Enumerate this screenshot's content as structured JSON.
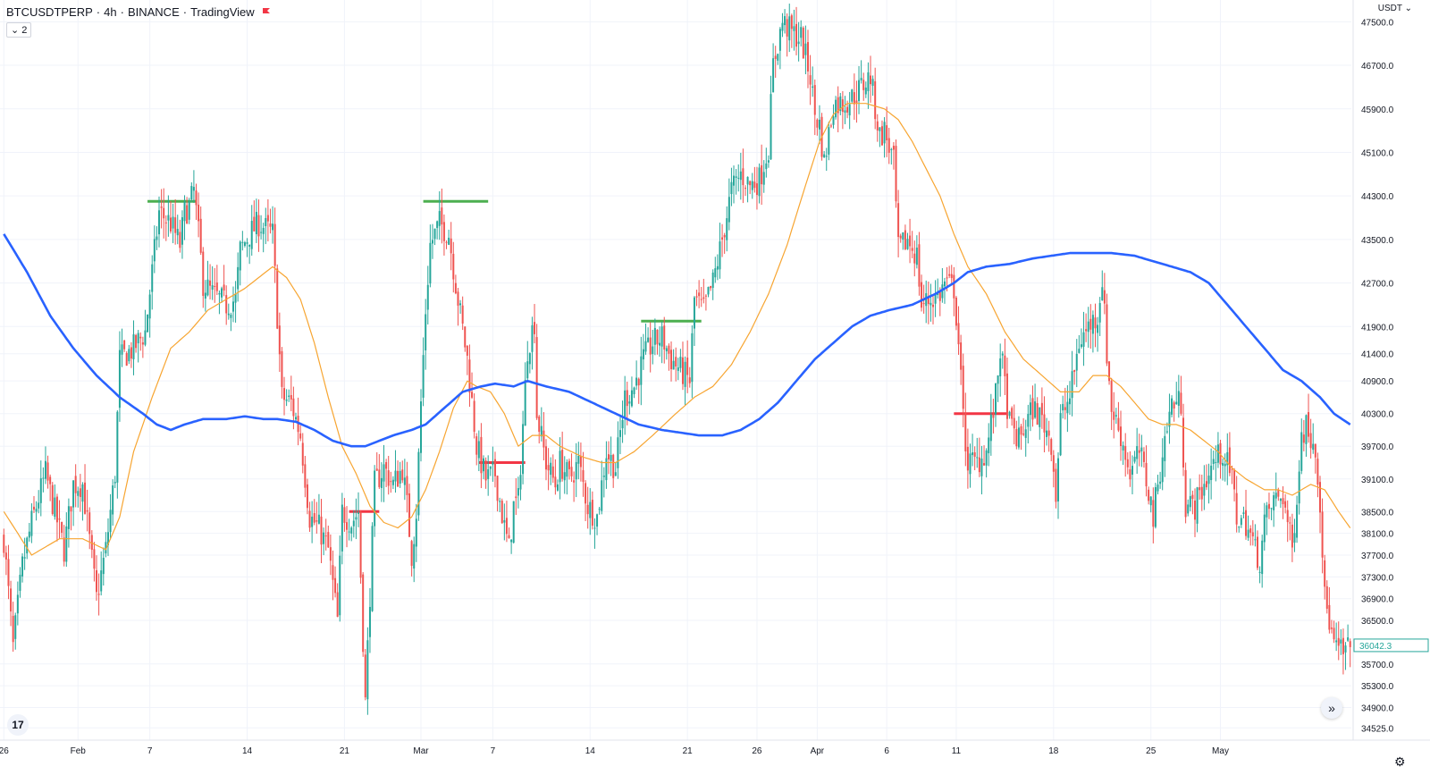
{
  "header": {
    "symbol": "BTCUSDTPERP",
    "interval": "4h",
    "exchange": "BINANCE",
    "source": "TradingView",
    "indicator_count": "2",
    "currency": "USDT"
  },
  "colors": {
    "up": "#26a69a",
    "down": "#ef5350",
    "ma_fast": "#f7a531",
    "ma_slow": "#2962ff",
    "resistance": "#4caf50",
    "support": "#f23645",
    "price_tag": "#26a69a"
  },
  "chart_data": {
    "type": "candlestick",
    "ylim": [
      34300,
      47900
    ],
    "y_ticks": [
      "47500.0",
      "46700.0",
      "45900.0",
      "45100.0",
      "44300.0",
      "43500.0",
      "42700.0",
      "41900.0",
      "41400.0",
      "40900.0",
      "40300.0",
      "39700.0",
      "39100.0",
      "38500.0",
      "38100.0",
      "37700.0",
      "37300.0",
      "36900.0",
      "36500.0",
      "36042.3",
      "35700.0",
      "35300.0",
      "34900.0",
      "34525.0"
    ],
    "x_labels": [
      {
        "label": "26",
        "idx": 0
      },
      {
        "label": "Feb",
        "idx": 32
      },
      {
        "label": "7",
        "idx": 63
      },
      {
        "label": "14",
        "idx": 105
      },
      {
        "label": "21",
        "idx": 147
      },
      {
        "label": "Mar",
        "idx": 180
      },
      {
        "label": "7",
        "idx": 211
      },
      {
        "label": "14",
        "idx": 253
      },
      {
        "label": "21",
        "idx": 295
      },
      {
        "label": "26",
        "idx": 325
      },
      {
        "label": "Apr",
        "idx": 351
      },
      {
        "label": "6",
        "idx": 381
      },
      {
        "label": "11",
        "idx": 411
      },
      {
        "label": "18",
        "idx": 453
      },
      {
        "label": "25",
        "idx": 495
      },
      {
        "label": "May",
        "idx": 525
      }
    ],
    "last_price": "36042.3",
    "close_anchors": [
      [
        0,
        38000
      ],
      [
        4,
        36000
      ],
      [
        8,
        37500
      ],
      [
        12,
        38300
      ],
      [
        18,
        39200
      ],
      [
        22,
        38500
      ],
      [
        26,
        37800
      ],
      [
        30,
        39000
      ],
      [
        34,
        39000
      ],
      [
        40,
        36900
      ],
      [
        44,
        37800
      ],
      [
        48,
        39200
      ],
      [
        50,
        41300
      ],
      [
        56,
        41500
      ],
      [
        61,
        41800
      ],
      [
        64,
        42900
      ],
      [
        67,
        44000
      ],
      [
        72,
        43800
      ],
      [
        76,
        43400
      ],
      [
        78,
        44000
      ],
      [
        80,
        44100
      ],
      [
        82,
        44400
      ],
      [
        84,
        43600
      ],
      [
        86,
        42700
      ],
      [
        90,
        42500
      ],
      [
        96,
        42300
      ],
      [
        100,
        42400
      ],
      [
        102,
        43300
      ],
      [
        106,
        43600
      ],
      [
        110,
        43800
      ],
      [
        116,
        43600
      ],
      [
        120,
        40600
      ],
      [
        124,
        40500
      ],
      [
        128,
        39900
      ],
      [
        132,
        38400
      ],
      [
        136,
        38200
      ],
      [
        140,
        37800
      ],
      [
        144,
        36500
      ],
      [
        146,
        38500
      ],
      [
        150,
        38300
      ],
      [
        153,
        38500
      ],
      [
        156,
        35000
      ],
      [
        160,
        39000
      ],
      [
        164,
        39300
      ],
      [
        168,
        39000
      ],
      [
        172,
        39300
      ],
      [
        174,
        38600
      ],
      [
        176,
        37700
      ],
      [
        178,
        38500
      ],
      [
        180,
        40500
      ],
      [
        182,
        42200
      ],
      [
        184,
        43400
      ],
      [
        188,
        43800
      ],
      [
        192,
        43600
      ],
      [
        196,
        42400
      ],
      [
        200,
        41300
      ],
      [
        204,
        39700
      ],
      [
        208,
        39100
      ],
      [
        212,
        39200
      ],
      [
        216,
        38200
      ],
      [
        218,
        37800
      ],
      [
        220,
        38600
      ],
      [
        222,
        38700
      ],
      [
        226,
        41500
      ],
      [
        229,
        42000
      ],
      [
        230,
        40300
      ],
      [
        234,
        39400
      ],
      [
        238,
        39000
      ],
      [
        240,
        39400
      ],
      [
        244,
        39100
      ],
      [
        248,
        39400
      ],
      [
        252,
        38600
      ],
      [
        256,
        38400
      ],
      [
        260,
        39600
      ],
      [
        264,
        39300
      ],
      [
        268,
        40600
      ],
      [
        272,
        40800
      ],
      [
        276,
        41300
      ],
      [
        280,
        41600
      ],
      [
        284,
        41700
      ],
      [
        288,
        41300
      ],
      [
        292,
        41100
      ],
      [
        296,
        40900
      ],
      [
        298,
        42400
      ],
      [
        302,
        42200
      ],
      [
        306,
        42700
      ],
      [
        310,
        43500
      ],
      [
        314,
        44400
      ],
      [
        318,
        44700
      ],
      [
        322,
        44500
      ],
      [
        326,
        44600
      ],
      [
        330,
        45200
      ],
      [
        332,
        46700
      ],
      [
        336,
        47500
      ],
      [
        340,
        47300
      ],
      [
        344,
        47200
      ],
      [
        348,
        46500
      ],
      [
        350,
        45800
      ],
      [
        352,
        45600
      ],
      [
        354,
        44900
      ],
      [
        358,
        46000
      ],
      [
        362,
        46000
      ],
      [
        366,
        46100
      ],
      [
        370,
        46300
      ],
      [
        374,
        46500
      ],
      [
        376,
        45900
      ],
      [
        378,
        45400
      ],
      [
        380,
        45500
      ],
      [
        384,
        44900
      ],
      [
        386,
        43300
      ],
      [
        390,
        43500
      ],
      [
        394,
        43200
      ],
      [
        396,
        42300
      ],
      [
        400,
        42400
      ],
      [
        404,
        42500
      ],
      [
        406,
        42700
      ],
      [
        410,
        42600
      ],
      [
        412,
        41600
      ],
      [
        414,
        40200
      ],
      [
        416,
        39400
      ],
      [
        420,
        39400
      ],
      [
        424,
        39600
      ],
      [
        428,
        40600
      ],
      [
        430,
        41500
      ],
      [
        434,
        40100
      ],
      [
        438,
        39800
      ],
      [
        440,
        40000
      ],
      [
        444,
        40400
      ],
      [
        448,
        40200
      ],
      [
        452,
        39800
      ],
      [
        454,
        38800
      ],
      [
        456,
        40200
      ],
      [
        460,
        40600
      ],
      [
        464,
        41600
      ],
      [
        468,
        41900
      ],
      [
        472,
        42100
      ],
      [
        474,
        42800
      ],
      [
        476,
        41400
      ],
      [
        478,
        40400
      ],
      [
        482,
        39900
      ],
      [
        486,
        39200
      ],
      [
        490,
        39600
      ],
      [
        494,
        38900
      ],
      [
        496,
        38400
      ],
      [
        500,
        39600
      ],
      [
        504,
        40500
      ],
      [
        508,
        40500
      ],
      [
        510,
        38600
      ],
      [
        514,
        38600
      ],
      [
        518,
        39000
      ],
      [
        522,
        39400
      ],
      [
        526,
        39600
      ],
      [
        530,
        39100
      ],
      [
        532,
        38400
      ],
      [
        536,
        38300
      ],
      [
        540,
        37800
      ],
      [
        542,
        37600
      ],
      [
        544,
        38300
      ],
      [
        548,
        38700
      ],
      [
        552,
        38800
      ],
      [
        556,
        37800
      ],
      [
        560,
        39900
      ],
      [
        562,
        40100
      ],
      [
        566,
        39700
      ],
      [
        568,
        38700
      ],
      [
        570,
        36900
      ],
      [
        572,
        36500
      ],
      [
        574,
        36000
      ],
      [
        578,
        35900
      ],
      [
        581,
        36000
      ]
    ],
    "ma_fast_anchors": [
      [
        0,
        38500
      ],
      [
        12,
        37700
      ],
      [
        24,
        38000
      ],
      [
        34,
        38000
      ],
      [
        44,
        37800
      ],
      [
        50,
        38400
      ],
      [
        56,
        39600
      ],
      [
        64,
        40600
      ],
      [
        72,
        41500
      ],
      [
        80,
        41800
      ],
      [
        88,
        42200
      ],
      [
        96,
        42400
      ],
      [
        104,
        42600
      ],
      [
        110,
        42800
      ],
      [
        116,
        43000
      ],
      [
        122,
        42800
      ],
      [
        128,
        42400
      ],
      [
        134,
        41600
      ],
      [
        140,
        40600
      ],
      [
        146,
        39700
      ],
      [
        152,
        39200
      ],
      [
        158,
        38600
      ],
      [
        164,
        38300
      ],
      [
        170,
        38200
      ],
      [
        176,
        38400
      ],
      [
        182,
        38900
      ],
      [
        188,
        39600
      ],
      [
        194,
        40400
      ],
      [
        200,
        40900
      ],
      [
        204,
        40800
      ],
      [
        210,
        40700
      ],
      [
        216,
        40300
      ],
      [
        222,
        39700
      ],
      [
        228,
        39900
      ],
      [
        234,
        39900
      ],
      [
        240,
        39700
      ],
      [
        250,
        39500
      ],
      [
        258,
        39400
      ],
      [
        264,
        39400
      ],
      [
        272,
        39600
      ],
      [
        280,
        39900
      ],
      [
        290,
        40300
      ],
      [
        298,
        40600
      ],
      [
        306,
        40800
      ],
      [
        314,
        41200
      ],
      [
        322,
        41800
      ],
      [
        330,
        42500
      ],
      [
        338,
        43400
      ],
      [
        346,
        44500
      ],
      [
        352,
        45300
      ],
      [
        358,
        45800
      ],
      [
        364,
        46000
      ],
      [
        372,
        46000
      ],
      [
        380,
        45900
      ],
      [
        386,
        45700
      ],
      [
        392,
        45300
      ],
      [
        398,
        44800
      ],
      [
        404,
        44300
      ],
      [
        410,
        43600
      ],
      [
        416,
        43000
      ],
      [
        424,
        42500
      ],
      [
        432,
        41800
      ],
      [
        440,
        41300
      ],
      [
        448,
        41000
      ],
      [
        456,
        40700
      ],
      [
        464,
        40700
      ],
      [
        470,
        41000
      ],
      [
        476,
        41000
      ],
      [
        482,
        40800
      ],
      [
        488,
        40500
      ],
      [
        494,
        40200
      ],
      [
        500,
        40100
      ],
      [
        506,
        40100
      ],
      [
        512,
        40000
      ],
      [
        518,
        39800
      ],
      [
        524,
        39600
      ],
      [
        530,
        39300
      ],
      [
        536,
        39100
      ],
      [
        544,
        38900
      ],
      [
        550,
        38900
      ],
      [
        556,
        38800
      ],
      [
        560,
        38900
      ],
      [
        564,
        39000
      ],
      [
        570,
        38900
      ],
      [
        576,
        38500
      ],
      [
        581,
        38200
      ]
    ],
    "ma_slow_anchors": [
      [
        0,
        43600
      ],
      [
        10,
        42900
      ],
      [
        20,
        42100
      ],
      [
        30,
        41500
      ],
      [
        40,
        41000
      ],
      [
        50,
        40600
      ],
      [
        60,
        40300
      ],
      [
        66,
        40100
      ],
      [
        72,
        40000
      ],
      [
        78,
        40100
      ],
      [
        86,
        40200
      ],
      [
        96,
        40200
      ],
      [
        104,
        40250
      ],
      [
        112,
        40200
      ],
      [
        118,
        40200
      ],
      [
        126,
        40150
      ],
      [
        134,
        40000
      ],
      [
        142,
        39800
      ],
      [
        150,
        39700
      ],
      [
        156,
        39700
      ],
      [
        162,
        39800
      ],
      [
        168,
        39900
      ],
      [
        176,
        40000
      ],
      [
        182,
        40100
      ],
      [
        190,
        40400
      ],
      [
        198,
        40700
      ],
      [
        206,
        40800
      ],
      [
        212,
        40850
      ],
      [
        220,
        40800
      ],
      [
        226,
        40900
      ],
      [
        234,
        40800
      ],
      [
        244,
        40700
      ],
      [
        254,
        40500
      ],
      [
        264,
        40300
      ],
      [
        274,
        40100
      ],
      [
        284,
        40000
      ],
      [
        292,
        39950
      ],
      [
        300,
        39900
      ],
      [
        310,
        39900
      ],
      [
        318,
        40000
      ],
      [
        326,
        40200
      ],
      [
        334,
        40500
      ],
      [
        342,
        40900
      ],
      [
        350,
        41300
      ],
      [
        358,
        41600
      ],
      [
        366,
        41900
      ],
      [
        374,
        42100
      ],
      [
        382,
        42200
      ],
      [
        392,
        42300
      ],
      [
        402,
        42500
      ],
      [
        410,
        42700
      ],
      [
        416,
        42900
      ],
      [
        424,
        43000
      ],
      [
        434,
        43050
      ],
      [
        444,
        43150
      ],
      [
        452,
        43200
      ],
      [
        460,
        43250
      ],
      [
        470,
        43250
      ],
      [
        478,
        43250
      ],
      [
        488,
        43200
      ],
      [
        496,
        43100
      ],
      [
        504,
        43000
      ],
      [
        512,
        42900
      ],
      [
        520,
        42700
      ],
      [
        528,
        42300
      ],
      [
        536,
        41900
      ],
      [
        544,
        41500
      ],
      [
        552,
        41100
      ],
      [
        560,
        40900
      ],
      [
        568,
        40600
      ],
      [
        574,
        40300
      ],
      [
        581,
        40100
      ]
    ],
    "levels": [
      {
        "kind": "resistance",
        "price": 44200,
        "from_idx": 62,
        "to_idx": 83
      },
      {
        "kind": "resistance",
        "price": 44200,
        "from_idx": 181,
        "to_idx": 209
      },
      {
        "kind": "resistance",
        "price": 42000,
        "from_idx": 275,
        "to_idx": 301
      },
      {
        "kind": "support",
        "price": 38500,
        "from_idx": 149,
        "to_idx": 162
      },
      {
        "kind": "support",
        "price": 39400,
        "from_idx": 205,
        "to_idx": 225
      },
      {
        "kind": "support",
        "price": 40300,
        "from_idx": 410,
        "to_idx": 433
      }
    ]
  }
}
